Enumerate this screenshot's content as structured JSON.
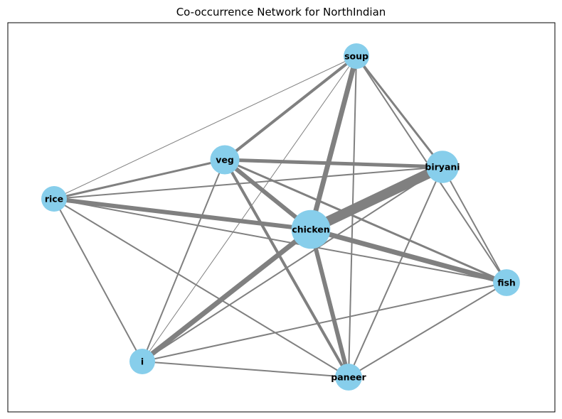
{
  "title": "Co-occurrence Network for NorthIndian",
  "colors": {
    "node": "#87ceeb",
    "edge": "#808080",
    "frame": "#000000"
  },
  "nodes": [
    {
      "id": "soup",
      "label": "soup",
      "weight": 1.0
    },
    {
      "id": "veg",
      "label": "veg",
      "weight": 1.3
    },
    {
      "id": "biryani",
      "label": "biryani",
      "weight": 1.6
    },
    {
      "id": "rice",
      "label": "rice",
      "weight": 1.0
    },
    {
      "id": "chicken",
      "label": "chicken",
      "weight": 2.3
    },
    {
      "id": "fish",
      "label": "fish",
      "weight": 1.1
    },
    {
      "id": "i",
      "label": "i",
      "weight": 1.0
    },
    {
      "id": "paneer",
      "label": "paneer",
      "weight": 1.1
    }
  ],
  "edges": [
    {
      "source": "chicken",
      "target": "biryani",
      "weight": 14
    },
    {
      "source": "chicken",
      "target": "soup",
      "weight": 7
    },
    {
      "source": "chicken",
      "target": "veg",
      "weight": 6
    },
    {
      "source": "chicken",
      "target": "rice",
      "weight": 6
    },
    {
      "source": "chicken",
      "target": "fish",
      "weight": 7
    },
    {
      "source": "chicken",
      "target": "i",
      "weight": 7
    },
    {
      "source": "chicken",
      "target": "paneer",
      "weight": 6
    },
    {
      "source": "veg",
      "target": "biryani",
      "weight": 5
    },
    {
      "source": "veg",
      "target": "soup",
      "weight": 4
    },
    {
      "source": "veg",
      "target": "rice",
      "weight": 3
    },
    {
      "source": "veg",
      "target": "fish",
      "weight": 3
    },
    {
      "source": "veg",
      "target": "paneer",
      "weight": 4
    },
    {
      "source": "veg",
      "target": "i",
      "weight": 2
    },
    {
      "source": "soup",
      "target": "biryani",
      "weight": 3
    },
    {
      "source": "soup",
      "target": "rice",
      "weight": 1
    },
    {
      "source": "soup",
      "target": "fish",
      "weight": 2
    },
    {
      "source": "soup",
      "target": "i",
      "weight": 1
    },
    {
      "source": "soup",
      "target": "paneer",
      "weight": 2
    },
    {
      "source": "biryani",
      "target": "rice",
      "weight": 2
    },
    {
      "source": "biryani",
      "target": "fish",
      "weight": 2
    },
    {
      "source": "biryani",
      "target": "paneer",
      "weight": 2
    },
    {
      "source": "biryani",
      "target": "i",
      "weight": 2
    },
    {
      "source": "rice",
      "target": "fish",
      "weight": 2
    },
    {
      "source": "rice",
      "target": "i",
      "weight": 2
    },
    {
      "source": "rice",
      "target": "paneer",
      "weight": 2
    },
    {
      "source": "fish",
      "target": "i",
      "weight": 2
    },
    {
      "source": "fish",
      "target": "paneer",
      "weight": 2
    },
    {
      "source": "i",
      "target": "paneer",
      "weight": 2
    }
  ]
}
